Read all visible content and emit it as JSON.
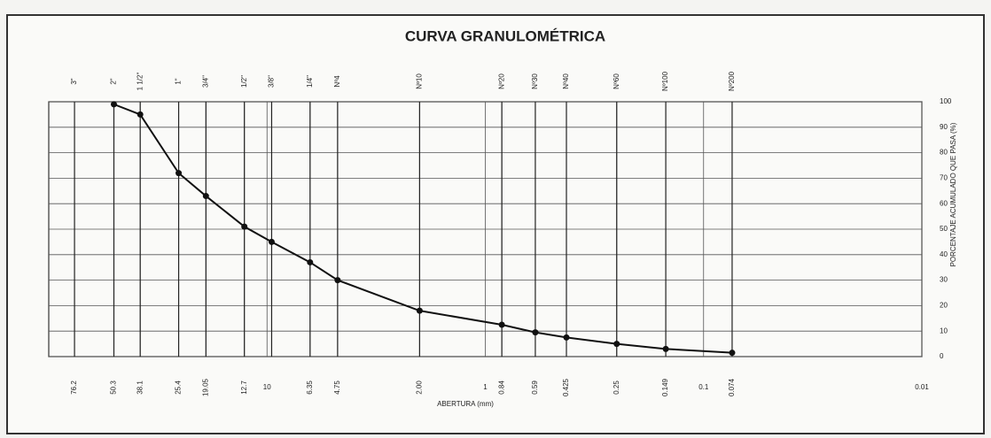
{
  "chart_data": {
    "type": "line",
    "title": "CURVA GRANULOMÉTRICA",
    "xlabel": "ABERTURA (mm)",
    "ylabel": "PORCENTAJE ACUMULADO QUE PASA (%)",
    "xscale": "log",
    "xlim": [
      100,
      0.01
    ],
    "ylim": [
      0,
      100
    ],
    "yticks": [
      0,
      10,
      20,
      30,
      40,
      50,
      60,
      70,
      80,
      90,
      100
    ],
    "xticks": [
      76.2,
      50.3,
      38.1,
      25.4,
      19.05,
      12.7,
      10,
      6.35,
      4.75,
      {
        "value": 2,
        "label": "2.00"
      },
      1,
      0.84,
      0.59,
      0.425,
      0.25,
      0.149,
      0.1,
      0.074,
      0.01
    ],
    "x2ticks": [
      {
        "value": 76.2,
        "label": "3\""
      },
      {
        "value": 50.3,
        "label": "2\""
      },
      {
        "value": 38.1,
        "label": "1 1/2\""
      },
      {
        "value": 25.4,
        "label": "1\""
      },
      {
        "value": 19.05,
        "label": "3/4\""
      },
      {
        "value": 12.7,
        "label": "1/2\""
      },
      {
        "value": 9.525,
        "label": "3/8\""
      },
      {
        "value": 6.35,
        "label": "1/4\""
      },
      {
        "value": 4.75,
        "label": "Nº4"
      },
      {
        "value": 2,
        "label": "Nº10"
      },
      {
        "value": 0.84,
        "label": "Nº20"
      },
      {
        "value": 0.59,
        "label": "Nº30"
      },
      {
        "value": 0.425,
        "label": "Nº40"
      },
      {
        "value": 0.25,
        "label": "Nº60"
      },
      {
        "value": 0.149,
        "label": "Nº100"
      },
      {
        "value": 0.074,
        "label": "Nº200"
      }
    ],
    "grid": true,
    "series": [
      {
        "color": "#111111",
        "x": [
          50.3,
          38.1,
          25.4,
          19.05,
          12.7,
          9.525,
          6.35,
          4.75,
          2,
          0.84,
          0.59,
          0.425,
          0.25,
          0.149,
          0.074
        ],
        "values": [
          99,
          95,
          72,
          63,
          51,
          45,
          37,
          30,
          18,
          12.5,
          9.5,
          7.5,
          5,
          3,
          1.5
        ]
      }
    ]
  }
}
